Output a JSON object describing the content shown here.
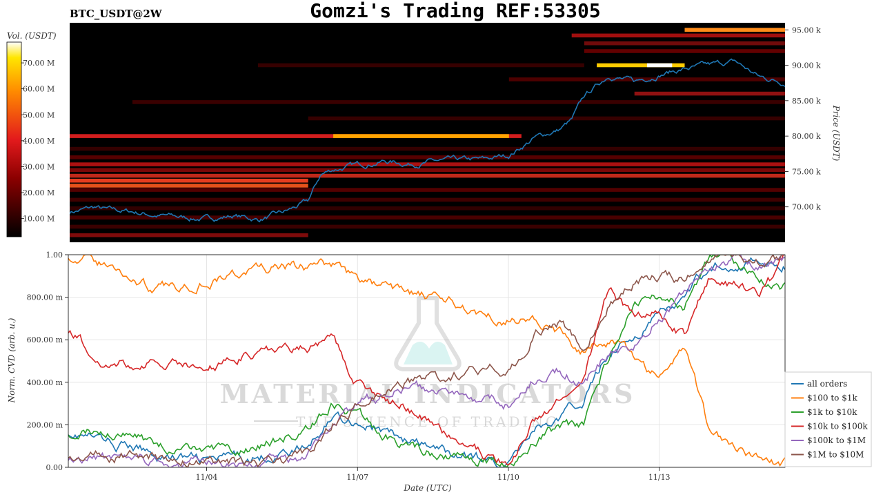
{
  "header": {
    "pair": "BTC_USDT@2W",
    "title": "Gomzi's Trading REF:53305"
  },
  "watermark": {
    "brand": "MATERIAL INDICATORS",
    "tagline": "THE SCIENCE OF TRADING"
  },
  "colors": {
    "price_line": "#1f77b4",
    "heat_low": "#000000",
    "heat_mid": "#d62728",
    "heat_high": "#ffffff"
  },
  "chart_data": [
    {
      "type": "heatmap",
      "colorbar": {
        "label": "Vol. (USDT)",
        "ticks": [
          "10.00 M",
          "20.00 M",
          "30.00 M",
          "40.00 M",
          "50.00 M",
          "60.00 M",
          "70.00 M"
        ],
        "range": [
          3,
          78
        ]
      },
      "y_axis": {
        "label": "Price (USDT)",
        "ticks": [
          "70.00 k",
          "75.00 k",
          "80.00 k",
          "85.00 k",
          "90.00 k",
          "95.00 k"
        ],
        "tick_values": [
          70000,
          75000,
          80000,
          85000,
          90000,
          95000
        ],
        "range": [
          65000,
          96000
        ]
      },
      "x_range": [
        "2024-11-01T06:00",
        "2024-11-15T12:00"
      ],
      "price_series": {
        "name": "price",
        "x": [
          "2024-11-01T06:00",
          "2024-11-01T18:00",
          "2024-11-02T00:00",
          "2024-11-02T12:00",
          "2024-11-03T00:00",
          "2024-11-03T12:00",
          "2024-11-04T00:00",
          "2024-11-04T12:00",
          "2024-11-05T00:00",
          "2024-11-05T12:00",
          "2024-11-06T00:00",
          "2024-11-06T06:00",
          "2024-11-06T12:00",
          "2024-11-07T00:00",
          "2024-11-07T12:00",
          "2024-11-08T00:00",
          "2024-11-08T12:00",
          "2024-11-09T00:00",
          "2024-11-09T12:00",
          "2024-11-10T00:00",
          "2024-11-10T12:00",
          "2024-11-11T00:00",
          "2024-11-11T06:00",
          "2024-11-11T12:00",
          "2024-11-12T00:00",
          "2024-11-12T12:00",
          "2024-11-13T00:00",
          "2024-11-13T12:00",
          "2024-11-14T00:00",
          "2024-11-14T12:00",
          "2024-11-15T00:00",
          "2024-11-15T12:00"
        ],
        "y": [
          69300,
          69900,
          69500,
          69300,
          68800,
          68500,
          68300,
          68800,
          68200,
          69100,
          70700,
          74500,
          75300,
          75900,
          76500,
          76100,
          76400,
          76500,
          76600,
          77300,
          79700,
          80900,
          82200,
          85500,
          88700,
          87600,
          88800,
          89500,
          89900,
          90500,
          88300,
          87600
        ]
      }
    },
    {
      "type": "line",
      "x_axis": {
        "label": "Date (UTC)",
        "ticks": [
          "11/04",
          "11/07",
          "11/10",
          "11/13"
        ],
        "tick_values": [
          "2024-11-04",
          "2024-11-07",
          "2024-11-10",
          "2024-11-13"
        ],
        "range": [
          "2024-11-01T06:00",
          "2024-11-15T12:00"
        ]
      },
      "y_axis": {
        "label": "Norm. CVD (arb. u.)",
        "ticks": [
          "0.00",
          "200.00 m",
          "400.00 m",
          "600.00 m",
          "800.00 m",
          "1.00"
        ],
        "tick_values": [
          0,
          0.2,
          0.4,
          0.6,
          0.8,
          1.0
        ],
        "range": [
          0,
          1
        ]
      },
      "grid": true,
      "legend_position": "right",
      "x": [
        "2024-11-01T06:00",
        "2024-11-02T00:00",
        "2024-11-03T00:00",
        "2024-11-04T00:00",
        "2024-11-05T00:00",
        "2024-11-06T00:00",
        "2024-11-06T12:00",
        "2024-11-07T00:00",
        "2024-11-08T00:00",
        "2024-11-09T00:00",
        "2024-11-10T00:00",
        "2024-11-10T12:00",
        "2024-11-11T00:00",
        "2024-11-11T12:00",
        "2024-11-12T00:00",
        "2024-11-12T12:00",
        "2024-11-13T00:00",
        "2024-11-13T12:00",
        "2024-11-14T00:00",
        "2024-11-14T12:00",
        "2024-11-15T00:00",
        "2024-11-15T12:00"
      ],
      "series": [
        {
          "name": "all orders",
          "color": "#1f77b4",
          "values": [
            0.17,
            0.12,
            0.06,
            0.03,
            0.05,
            0.09,
            0.25,
            0.22,
            0.12,
            0.05,
            0.02,
            0.19,
            0.22,
            0.32,
            0.55,
            0.62,
            0.72,
            0.78,
            0.95,
            0.97,
            0.96,
            0.95
          ]
        },
        {
          "name": "$100 to $1k",
          "color": "#ff7f0e",
          "values": [
            1.0,
            0.95,
            0.83,
            0.88,
            0.93,
            0.94,
            0.96,
            0.88,
            0.82,
            0.76,
            0.7,
            0.7,
            0.63,
            0.55,
            0.6,
            0.52,
            0.42,
            0.58,
            0.17,
            0.12,
            0.03,
            0.01
          ]
        },
        {
          "name": "$1k to $10k",
          "color": "#2ca02c",
          "values": [
            0.17,
            0.18,
            0.11,
            0.06,
            0.1,
            0.17,
            0.3,
            0.23,
            0.1,
            0.05,
            0.02,
            0.13,
            0.18,
            0.2,
            0.52,
            0.76,
            0.8,
            0.75,
            0.97,
            0.96,
            0.9,
            0.85
          ]
        },
        {
          "name": "$10k to $100k",
          "color": "#d62728",
          "values": [
            0.65,
            0.48,
            0.5,
            0.46,
            0.55,
            0.56,
            0.62,
            0.4,
            0.28,
            0.12,
            0.01,
            0.22,
            0.3,
            0.4,
            0.85,
            0.7,
            0.72,
            0.62,
            0.9,
            0.85,
            0.8,
            0.97
          ]
        },
        {
          "name": "$100k to $1M",
          "color": "#9467bd",
          "values": [
            0.05,
            0.04,
            0.02,
            0.02,
            0.02,
            0.05,
            0.18,
            0.3,
            0.38,
            0.34,
            0.3,
            0.42,
            0.45,
            0.4,
            0.55,
            0.58,
            0.7,
            0.82,
            0.96,
            0.97,
            0.96,
            0.96
          ]
        },
        {
          "name": "$1M to $10M",
          "color": "#8c564b",
          "values": [
            0.06,
            0.06,
            0.05,
            0.03,
            0.02,
            0.05,
            0.2,
            0.28,
            0.4,
            0.44,
            0.47,
            0.62,
            0.68,
            0.57,
            0.78,
            0.88,
            0.89,
            0.89,
            0.97,
            0.97,
            0.97,
            0.97
          ]
        }
      ]
    }
  ]
}
